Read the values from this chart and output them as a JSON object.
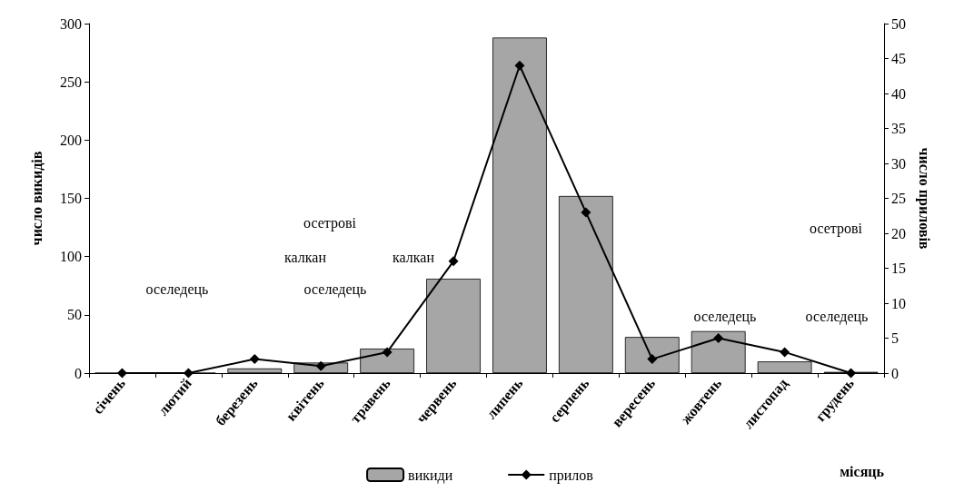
{
  "chart_data": {
    "type": "bar",
    "xlabel": "місяць",
    "ylabel": "число викидів",
    "y2label": "число приловів",
    "categories": [
      "січень",
      "лютий",
      "березень",
      "квітень",
      "травень",
      "червень",
      "липень",
      "серпень",
      "вересень",
      "жовтень",
      "листопад",
      "грудень"
    ],
    "series": [
      {
        "name": "викиди",
        "color": "#a6a6a6",
        "values": [
          0,
          0,
          4,
          9,
          21,
          81,
          288,
          152,
          31,
          36,
          10,
          1
        ]
      },
      {
        "name": "прилов",
        "type": "line",
        "axis": "y2",
        "color": "#000000",
        "marker": "diamond",
        "values": [
          0,
          0,
          2,
          1,
          3,
          16,
          44,
          23,
          2,
          5,
          3,
          0
        ]
      }
    ],
    "ylim": [
      0,
      300
    ],
    "yticks": [
      0,
      50,
      100,
      150,
      200,
      250,
      300
    ],
    "y2lim": [
      0,
      50
    ],
    "y2ticks": [
      0,
      5,
      10,
      15,
      20,
      25,
      30,
      35,
      40,
      45,
      50
    ],
    "annotations": [
      "оселедець",
      "осетрові",
      "калкан",
      "оселедець",
      "калкан",
      "осетрові",
      "оселедець",
      "оселедець"
    ],
    "legend": "bottom",
    "grid": false
  }
}
